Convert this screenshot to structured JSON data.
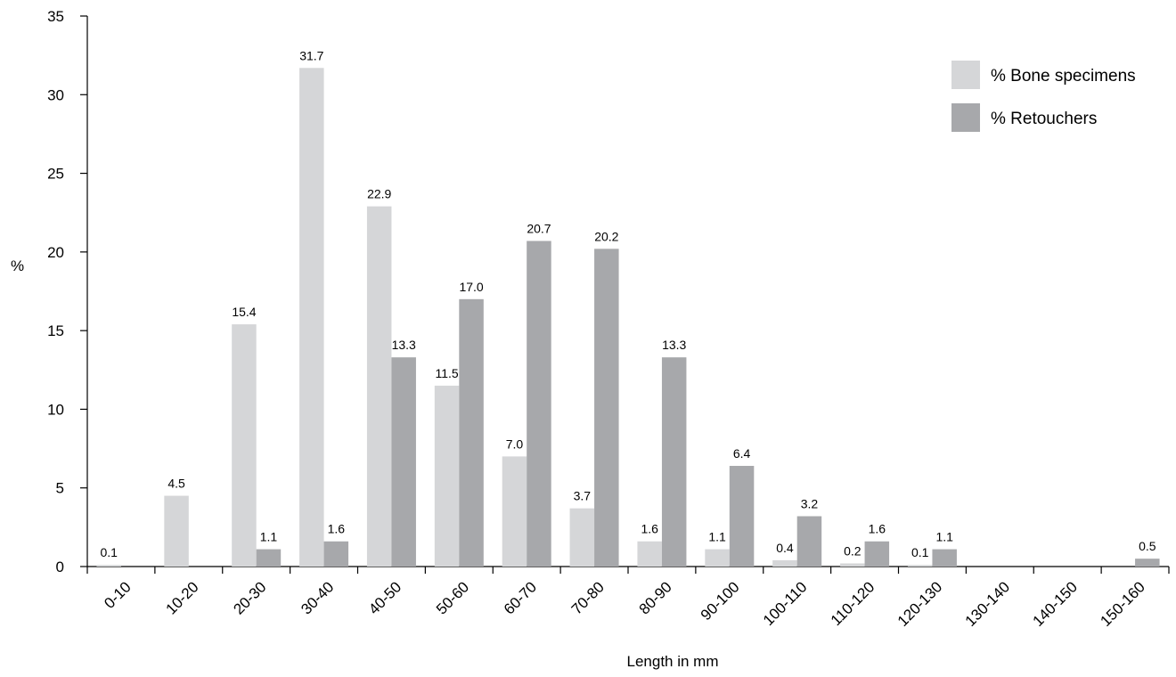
{
  "chart_data": {
    "type": "bar",
    "categories": [
      "0-10",
      "10-20",
      "20-30",
      "30-40",
      "40-50",
      "50-60",
      "60-70",
      "70-80",
      "80-90",
      "90-100",
      "100-110",
      "110-120",
      "120-130",
      "130-140",
      "140-150",
      "150-160"
    ],
    "series": [
      {
        "name": "% Bone specimens",
        "color": "#d5d6d8",
        "values": [
          0.1,
          4.5,
          15.4,
          31.7,
          22.9,
          11.5,
          7.0,
          3.7,
          1.6,
          1.1,
          0.4,
          0.2,
          0.1,
          null,
          null,
          null
        ],
        "labels": [
          "0.1",
          "4.5",
          "15.4",
          "31.7",
          "22.9",
          "11.5",
          "7.0",
          "3.7",
          "1.6",
          "1.1",
          "0.4",
          "0.2",
          "0.1",
          "",
          "",
          ""
        ]
      },
      {
        "name": "% Retouchers",
        "color": "#a7a8ab",
        "values": [
          null,
          null,
          1.1,
          1.6,
          13.3,
          17.0,
          20.7,
          20.2,
          13.3,
          6.4,
          3.2,
          1.6,
          1.1,
          null,
          null,
          0.5
        ],
        "labels": [
          "",
          "",
          "1.1",
          "1.6",
          "13.3",
          "17.0",
          "20.7",
          "20.2",
          "13.3",
          "6.4",
          "3.2",
          "1.6",
          "1.1",
          "",
          "",
          "0.5"
        ]
      }
    ],
    "yticks": [
      "0",
      "5",
      "10",
      "15",
      "20",
      "25",
      "30",
      "35"
    ],
    "ylim": [
      0,
      35
    ],
    "xlabel": "Length in mm",
    "ylabel": "%",
    "grid": false,
    "legend_position": "top-right"
  }
}
